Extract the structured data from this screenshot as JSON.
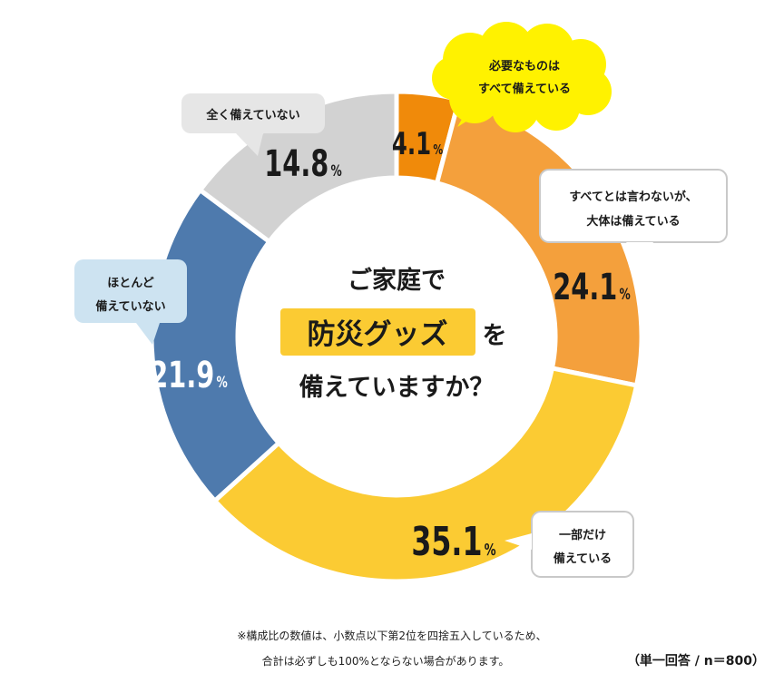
{
  "chart_data": {
    "type": "pie",
    "title_lines": [
      "ご家庭で",
      "防災グッズ",
      "を",
      "備えていますか？"
    ],
    "unit": "%",
    "slices": [
      {
        "label": [
          "必要なものは",
          "すべて備えている"
        ],
        "value": 4.1,
        "value_text": "4.1",
        "color": "#F08A0A"
      },
      {
        "label": [
          "すべてとは言わないが、",
          "大体は備えている"
        ],
        "value": 24.1,
        "value_text": "24.1",
        "color": "#F4A03C"
      },
      {
        "label": [
          "一部だけ",
          "備えている"
        ],
        "value": 35.1,
        "value_text": "35.1",
        "color": "#FBCB33"
      },
      {
        "label": [
          "ほとんど",
          "備えていない"
        ],
        "value": 21.9,
        "value_text": "21.9",
        "color": "#4E7AAD"
      },
      {
        "label": [
          "全く備えていない"
        ],
        "value": 14.8,
        "value_text": "14.8",
        "color": "#D2D2D2"
      }
    ],
    "highlight_color": "#FBCB33",
    "bubble_colors": {
      "yellow": "#FFF200",
      "white": "#FFFFFF",
      "lightblue": "#CDE3F1",
      "lightgray": "#E6E6E6"
    }
  },
  "footnote": [
    "※構成比の数値は、小数点以下第2位を四捨五入しているため、",
    "合計は必ずしも100%とならない場合があります。"
  ],
  "sample_note": "（単一回答 / n＝800）"
}
